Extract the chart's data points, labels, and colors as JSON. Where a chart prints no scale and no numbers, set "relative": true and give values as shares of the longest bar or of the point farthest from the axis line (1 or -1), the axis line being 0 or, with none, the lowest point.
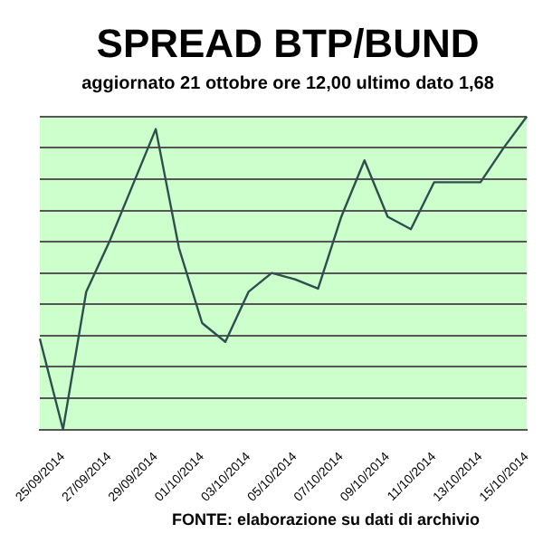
{
  "chart_data": {
    "type": "line",
    "title": "SPREAD BTP/BUND",
    "subtitle": "aggiornato 21 ottobre ore 12,00 ultimo dato 1,68",
    "annotations": [
      "FONTE: elaborazione su dati di archivio"
    ],
    "relative": true,
    "grid": "y",
    "legend": false,
    "marker": "none",
    "categories": [
      null,
      "25/09/2014",
      null,
      "27/09/2014",
      null,
      "29/09/2014",
      null,
      "01/10/2014",
      null,
      "03/10/2014",
      null,
      "05/10/2014",
      null,
      "07/10/2014",
      null,
      "09/10/2014",
      null,
      "11/10/2014",
      null,
      "13/10/2014",
      null,
      "15/10/2014"
    ],
    "series": [
      {
        "color": "#2f4f4f",
        "values": [
          0.29,
          0,
          0.44,
          0.6,
          0.78,
          0.96,
          0.58,
          0.34,
          0.28,
          0.44,
          0.5,
          0.48,
          0.45,
          0.68,
          0.86,
          0.68,
          0.64,
          0.79,
          0.79,
          0.79,
          0.9,
          1
        ]
      }
    ]
  }
}
